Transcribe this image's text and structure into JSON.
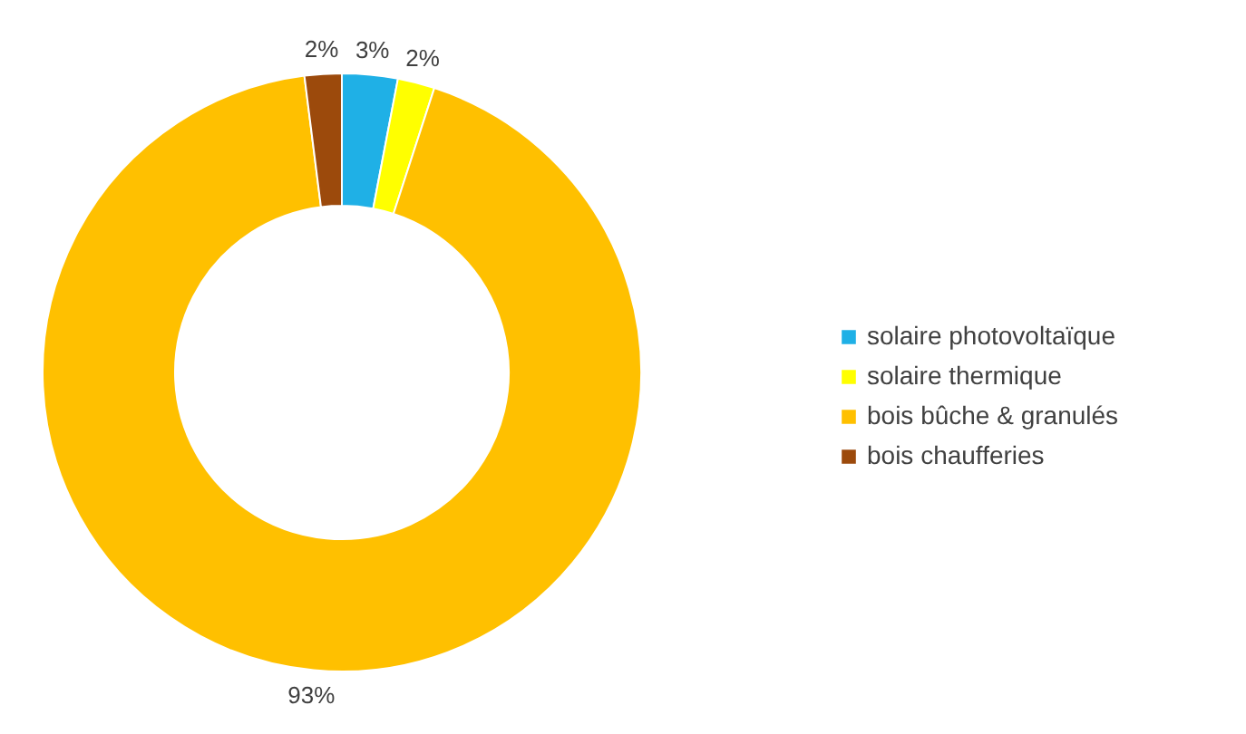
{
  "chart_data": {
    "type": "donut",
    "categories": [
      "solaire photovoltaïque",
      "solaire thermique",
      "bois bûche & granulés",
      "bois chaufferies"
    ],
    "values": [
      3,
      2,
      93,
      2
    ],
    "colors": [
      "#1fb0e6",
      "#ffff00",
      "#ffc000",
      "#9c4a0c"
    ],
    "value_labels": [
      "3%",
      "2%",
      "93%",
      "2%"
    ],
    "legend": "right"
  }
}
